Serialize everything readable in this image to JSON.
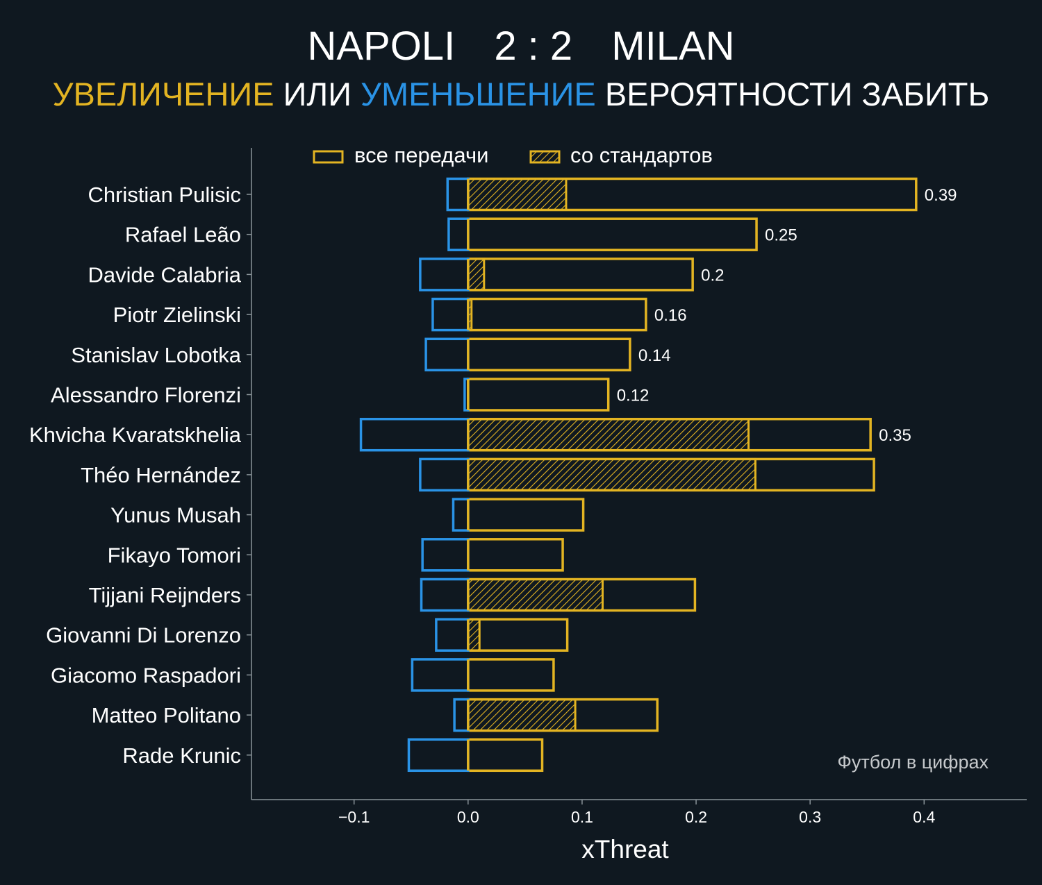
{
  "header": {
    "home_team": "NAPOLI",
    "score": "2 : 2",
    "away_team": "MILAN",
    "subtitle_part1": "УВЕЛИЧЕНИЕ",
    "subtitle_part2": "ИЛИ",
    "subtitle_part3": "УМЕНЬШЕНИЕ",
    "subtitle_part4": "ВЕРОЯТНОСТИ ЗАБИТЬ"
  },
  "legend": {
    "all_passes": "все передачи",
    "set_pieces": "со стандартов",
    "placement": "top"
  },
  "watermark": "Футбол в цифрах",
  "colors": {
    "background": "#0f1820",
    "increase": "#e3b422",
    "decrease": "#2a93e6",
    "text": "#ffffff",
    "axis": "#8a9499",
    "watermark": "#c6c9cc"
  },
  "chart_data": {
    "type": "bar",
    "orientation": "horizontal",
    "xlabel": "xThreat",
    "xlim": [
      -0.19,
      0.49
    ],
    "xticks": [
      -0.1,
      0.0,
      0.1,
      0.2,
      0.3,
      0.4
    ],
    "xtick_labels": [
      "−0.1",
      "0.0",
      "0.1",
      "0.2",
      "0.3",
      "0.4"
    ],
    "grid": false,
    "categories": [
      "Christian Pulisic",
      "Rafael Leão",
      "Davide Calabria",
      "Piotr Zielinski",
      "Stanislav Lobotka",
      "Alessandro Florenzi",
      "Khvicha Kvaratskhelia",
      "Théo Hernández",
      "Yunus Musah",
      "Fikayo Tomori",
      "Tijjani Reijnders",
      "Giovanni Di Lorenzo",
      "Giacomo Raspadori",
      "Matteo Politano",
      "Rade Krunic"
    ],
    "series": [
      {
        "name": "все передачи",
        "values": [
          0.393,
          0.253,
          0.197,
          0.156,
          0.142,
          0.123,
          0.353,
          0.356,
          0.101,
          0.083,
          0.199,
          0.087,
          0.075,
          0.166,
          0.065
        ]
      },
      {
        "name": "со стандартов",
        "values": [
          0.086,
          0,
          0.014,
          0.003,
          0,
          0,
          0.246,
          0.252,
          0,
          0,
          0.118,
          0.01,
          0,
          0.094,
          0
        ]
      },
      {
        "name": "decrease",
        "values": [
          -0.018,
          -0.017,
          -0.042,
          -0.031,
          -0.037,
          -0.003,
          -0.094,
          -0.042,
          -0.013,
          -0.04,
          -0.041,
          -0.028,
          -0.049,
          -0.012,
          -0.052
        ]
      }
    ],
    "value_labels": [
      "0.39",
      "0.25",
      "0.2",
      "0.16",
      "0.14",
      "0.12",
      "0.35",
      "",
      "",
      "",
      "",
      "",
      "",
      "",
      ""
    ]
  }
}
